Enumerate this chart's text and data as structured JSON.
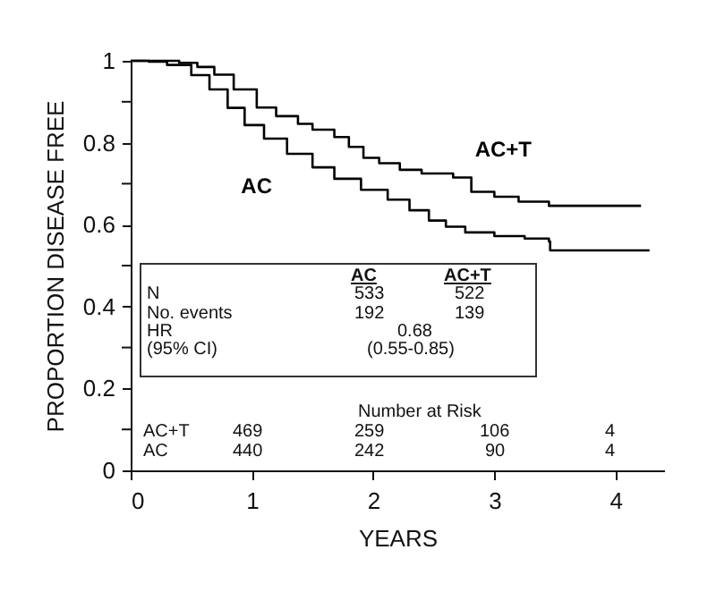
{
  "chart_data": {
    "type": "step",
    "xlabel": "YEARS",
    "ylabel": "PROPORTION DISEASE FREE",
    "xlim": [
      0,
      4.4
    ],
    "xticks": [
      0,
      1,
      2,
      3,
      4
    ],
    "ylim": [
      0,
      1
    ],
    "yticks": [
      0,
      {
        "value": 0.1,
        "label": null
      },
      0.2,
      {
        "value": 0.3,
        "label": null
      },
      0.4,
      {
        "value": 0.5,
        "label": null
      },
      0.6,
      {
        "value": 0.7,
        "label": null
      },
      0.8,
      {
        "value": 0.9,
        "label": null
      },
      1
    ],
    "grid": false,
    "marker": "none",
    "series": [
      {
        "name": "AC+T",
        "color": "#000000",
        "x": [
          0,
          0.2,
          0.4,
          0.55,
          0.69,
          0.85,
          1.04,
          1.2,
          1.38,
          1.5,
          1.68,
          1.8,
          1.92,
          2.05,
          2.22,
          2.4,
          2.66,
          2.81,
          3.0,
          3.2,
          3.45,
          4.21
        ],
        "values": [
          1,
          1,
          0.995,
          0.985,
          0.966,
          0.93,
          0.886,
          0.865,
          0.846,
          0.832,
          0.814,
          0.79,
          0.763,
          0.75,
          0.734,
          0.725,
          0.715,
          0.68,
          0.668,
          0.656,
          0.646,
          0.646
        ]
      },
      {
        "name": "AC",
        "color": "#000000",
        "x": [
          0,
          0.15,
          0.3,
          0.5,
          0.65,
          0.8,
          0.94,
          1.1,
          1.29,
          1.5,
          1.68,
          1.9,
          2.12,
          2.3,
          2.46,
          2.6,
          2.76,
          3.0,
          3.25,
          3.45,
          3.46,
          4.28
        ],
        "values": [
          1,
          0.998,
          0.99,
          0.965,
          0.93,
          0.885,
          0.843,
          0.81,
          0.773,
          0.74,
          0.712,
          0.685,
          0.661,
          0.635,
          0.61,
          0.595,
          0.581,
          0.572,
          0.566,
          0.559,
          0.537,
          0.537
        ]
      }
    ],
    "annotations": [
      "AC",
      "AC+T",
      "N",
      "533",
      "522",
      "No. events",
      "192",
      "139",
      "HR",
      "0.68",
      "(95% CI)",
      "(0.55-0.85)",
      "Number at Risk",
      "AC+T",
      "469",
      "259",
      "106",
      "4",
      "AC",
      "440",
      "242",
      "90",
      "4"
    ]
  }
}
